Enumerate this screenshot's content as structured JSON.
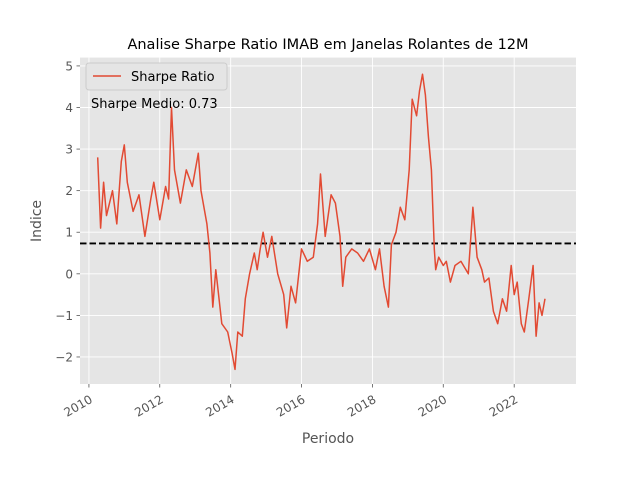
{
  "chart_data": {
    "type": "line",
    "title": "Analise Sharpe Ratio IMAB em Janelas Rolantes de 12M",
    "xlabel": "Periodo",
    "ylabel": "Indice",
    "x_axis": "date",
    "xlim": [
      "2009-10-01",
      "2023-09-30"
    ],
    "ylim": [
      -2.65,
      5.2
    ],
    "x_ticks": [
      {
        "value": "2010-01-01",
        "label": "2010"
      },
      {
        "value": "2012-01-01",
        "label": "2012"
      },
      {
        "value": "2014-01-01",
        "label": "2014"
      },
      {
        "value": "2016-01-01",
        "label": "2016"
      },
      {
        "value": "2018-01-01",
        "label": "2018"
      },
      {
        "value": "2020-01-01",
        "label": "2020"
      },
      {
        "value": "2022-01-01",
        "label": "2022"
      }
    ],
    "y_ticks": [
      {
        "value": -2,
        "label": "−2"
      },
      {
        "value": -1,
        "label": "−1"
      },
      {
        "value": 0,
        "label": "0"
      },
      {
        "value": 1,
        "label": "1"
      },
      {
        "value": 2,
        "label": "2"
      },
      {
        "value": 3,
        "label": "3"
      },
      {
        "value": 4,
        "label": "4"
      },
      {
        "value": 5,
        "label": "5"
      }
    ],
    "grid": true,
    "legend_position": "top-left",
    "series": [
      {
        "name": "Sharpe Ratio",
        "color": "#e24a33",
        "points": [
          {
            "x": "2010-04-01",
            "y": 2.8
          },
          {
            "x": "2010-05-01",
            "y": 1.1
          },
          {
            "x": "2010-06-01",
            "y": 2.2
          },
          {
            "x": "2010-07-01",
            "y": 1.4
          },
          {
            "x": "2010-09-01",
            "y": 2.0
          },
          {
            "x": "2010-10-15",
            "y": 1.2
          },
          {
            "x": "2010-12-01",
            "y": 2.7
          },
          {
            "x": "2011-01-01",
            "y": 3.1
          },
          {
            "x": "2011-02-01",
            "y": 2.2
          },
          {
            "x": "2011-04-01",
            "y": 1.5
          },
          {
            "x": "2011-06-01",
            "y": 1.9
          },
          {
            "x": "2011-08-01",
            "y": 0.9
          },
          {
            "x": "2011-10-01",
            "y": 1.8
          },
          {
            "x": "2011-11-01",
            "y": 2.2
          },
          {
            "x": "2012-01-01",
            "y": 1.3
          },
          {
            "x": "2012-03-01",
            "y": 2.1
          },
          {
            "x": "2012-04-01",
            "y": 1.8
          },
          {
            "x": "2012-05-01",
            "y": 4.0
          },
          {
            "x": "2012-06-01",
            "y": 2.5
          },
          {
            "x": "2012-08-01",
            "y": 1.7
          },
          {
            "x": "2012-10-01",
            "y": 2.5
          },
          {
            "x": "2012-12-01",
            "y": 2.1
          },
          {
            "x": "2013-02-01",
            "y": 2.9
          },
          {
            "x": "2013-03-01",
            "y": 2.0
          },
          {
            "x": "2013-05-01",
            "y": 1.2
          },
          {
            "x": "2013-06-01",
            "y": 0.5
          },
          {
            "x": "2013-07-01",
            "y": -0.8
          },
          {
            "x": "2013-08-01",
            "y": 0.1
          },
          {
            "x": "2013-10-01",
            "y": -1.2
          },
          {
            "x": "2013-12-01",
            "y": -1.4
          },
          {
            "x": "2014-01-15",
            "y": -1.9
          },
          {
            "x": "2014-02-15",
            "y": -2.3
          },
          {
            "x": "2014-03-15",
            "y": -1.4
          },
          {
            "x": "2014-05-01",
            "y": -1.5
          },
          {
            "x": "2014-06-01",
            "y": -0.6
          },
          {
            "x": "2014-07-15",
            "y": 0.0
          },
          {
            "x": "2014-09-01",
            "y": 0.5
          },
          {
            "x": "2014-10-01",
            "y": 0.1
          },
          {
            "x": "2014-11-01",
            "y": 0.6
          },
          {
            "x": "2014-12-01",
            "y": 1.0
          },
          {
            "x": "2015-01-15",
            "y": 0.4
          },
          {
            "x": "2015-03-01",
            "y": 0.9
          },
          {
            "x": "2015-05-01",
            "y": 0.0
          },
          {
            "x": "2015-07-01",
            "y": -0.5
          },
          {
            "x": "2015-08-01",
            "y": -1.3
          },
          {
            "x": "2015-09-15",
            "y": -0.3
          },
          {
            "x": "2015-11-01",
            "y": -0.7
          },
          {
            "x": "2016-01-01",
            "y": 0.6
          },
          {
            "x": "2016-03-01",
            "y": 0.3
          },
          {
            "x": "2016-05-01",
            "y": 0.4
          },
          {
            "x": "2016-06-15",
            "y": 1.2
          },
          {
            "x": "2016-07-15",
            "y": 2.4
          },
          {
            "x": "2016-09-01",
            "y": 0.9
          },
          {
            "x": "2016-11-01",
            "y": 1.9
          },
          {
            "x": "2016-12-15",
            "y": 1.7
          },
          {
            "x": "2017-02-01",
            "y": 0.9
          },
          {
            "x": "2017-03-01",
            "y": -0.3
          },
          {
            "x": "2017-04-01",
            "y": 0.4
          },
          {
            "x": "2017-06-01",
            "y": 0.6
          },
          {
            "x": "2017-08-01",
            "y": 0.5
          },
          {
            "x": "2017-10-01",
            "y": 0.3
          },
          {
            "x": "2017-12-01",
            "y": 0.6
          },
          {
            "x": "2018-02-01",
            "y": 0.1
          },
          {
            "x": "2018-03-15",
            "y": 0.6
          },
          {
            "x": "2018-05-01",
            "y": -0.3
          },
          {
            "x": "2018-06-15",
            "y": -0.8
          },
          {
            "x": "2018-07-15",
            "y": 0.7
          },
          {
            "x": "2018-09-01",
            "y": 1.0
          },
          {
            "x": "2018-10-15",
            "y": 1.6
          },
          {
            "x": "2018-12-01",
            "y": 1.3
          },
          {
            "x": "2019-01-15",
            "y": 2.5
          },
          {
            "x": "2019-02-15",
            "y": 4.2
          },
          {
            "x": "2019-04-01",
            "y": 3.8
          },
          {
            "x": "2019-05-01",
            "y": 4.4
          },
          {
            "x": "2019-06-01",
            "y": 4.8
          },
          {
            "x": "2019-07-01",
            "y": 4.3
          },
          {
            "x": "2019-08-01",
            "y": 3.3
          },
          {
            "x": "2019-09-01",
            "y": 2.5
          },
          {
            "x": "2019-10-01",
            "y": 0.6
          },
          {
            "x": "2019-10-15",
            "y": 0.1
          },
          {
            "x": "2019-11-15",
            "y": 0.4
          },
          {
            "x": "2020-01-01",
            "y": 0.2
          },
          {
            "x": "2020-02-01",
            "y": 0.3
          },
          {
            "x": "2020-03-15",
            "y": -0.2
          },
          {
            "x": "2020-05-01",
            "y": 0.2
          },
          {
            "x": "2020-07-01",
            "y": 0.3
          },
          {
            "x": "2020-09-15",
            "y": 0.0
          },
          {
            "x": "2020-11-01",
            "y": 1.6
          },
          {
            "x": "2020-12-15",
            "y": 0.4
          },
          {
            "x": "2021-02-01",
            "y": 0.1
          },
          {
            "x": "2021-03-01",
            "y": -0.2
          },
          {
            "x": "2021-04-15",
            "y": -0.1
          },
          {
            "x": "2021-06-01",
            "y": -0.9
          },
          {
            "x": "2021-07-15",
            "y": -1.2
          },
          {
            "x": "2021-09-01",
            "y": -0.6
          },
          {
            "x": "2021-10-15",
            "y": -0.9
          },
          {
            "x": "2021-12-01",
            "y": 0.2
          },
          {
            "x": "2022-01-01",
            "y": -0.5
          },
          {
            "x": "2022-02-01",
            "y": -0.2
          },
          {
            "x": "2022-03-15",
            "y": -1.2
          },
          {
            "x": "2022-04-15",
            "y": -1.4
          },
          {
            "x": "2022-06-01",
            "y": -0.6
          },
          {
            "x": "2022-07-15",
            "y": 0.2
          },
          {
            "x": "2022-08-15",
            "y": -1.5
          },
          {
            "x": "2022-09-15",
            "y": -0.7
          },
          {
            "x": "2022-10-15",
            "y": -1.0
          },
          {
            "x": "2022-11-15",
            "y": -0.6
          }
        ]
      }
    ],
    "reference_line": {
      "y": 0.73,
      "color": "#000000",
      "style": "dashed"
    },
    "annotation": "Sharpe Medio: 0.73"
  }
}
